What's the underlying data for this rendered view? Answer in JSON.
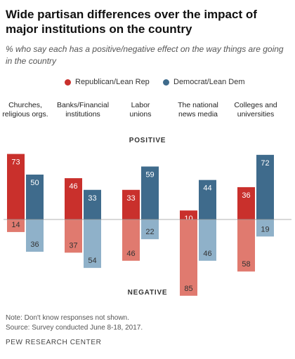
{
  "title": "Wide partisan differences over the impact of major institutions on the country",
  "subtitle": "% who say each has a positive/negative effect on the way things are going in the country",
  "note": "Note: Don't know responses not shown.",
  "source": "Source: Survey conducted June 8-18, 2017.",
  "brand": "PEW RESEARCH CENTER",
  "chart_data": {
    "type": "bar",
    "orientation": "diverging-vertical",
    "labels": {
      "positive": "POSITIVE",
      "negative": "NEGATIVE"
    },
    "categories": [
      "Churches, religious orgs.",
      "Banks/Financial institutions",
      "Labor unions",
      "The national news media",
      "Colleges and universities"
    ],
    "series": [
      {
        "name": "Republican/Lean Rep",
        "positive": [
          73,
          46,
          33,
          10,
          36
        ],
        "negative": [
          14,
          37,
          46,
          85,
          58
        ]
      },
      {
        "name": "Democrat/Lean Dem",
        "positive": [
          50,
          33,
          59,
          44,
          72
        ],
        "negative": [
          36,
          54,
          22,
          46,
          19
        ]
      }
    ],
    "colors": {
      "rep_positive": "#c9302c",
      "rep_negative": "#e07a6f",
      "dem_positive": "#3f6b8c",
      "dem_negative": "#8fb1c9"
    },
    "legend_placement": "top"
  }
}
